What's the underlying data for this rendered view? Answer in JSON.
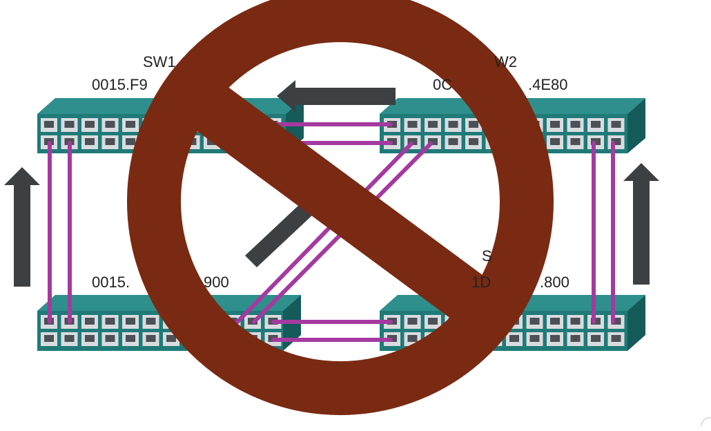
{
  "switches": [
    {
      "name": "SW1",
      "mac": "0015.F9"
    },
    {
      "name": "W2",
      "mac": "0C",
      "mac_suffix": ".4E80"
    },
    {
      "name": "",
      "mac": "0015.",
      "mac_suffix": "900"
    },
    {
      "name": "S",
      "mac": "1D",
      "mac_suffix": ".800"
    }
  ],
  "overlay": {
    "symbol": "prohibited-sign"
  },
  "colors": {
    "switch_face": "#1f7a78",
    "switch_top": "#2e8f8c",
    "switch_side": "#145b5a",
    "port_face": "#d9dcdf",
    "link": "#a43a9f",
    "arrow": "#3d4043",
    "prohibit": "#7a2a12"
  }
}
